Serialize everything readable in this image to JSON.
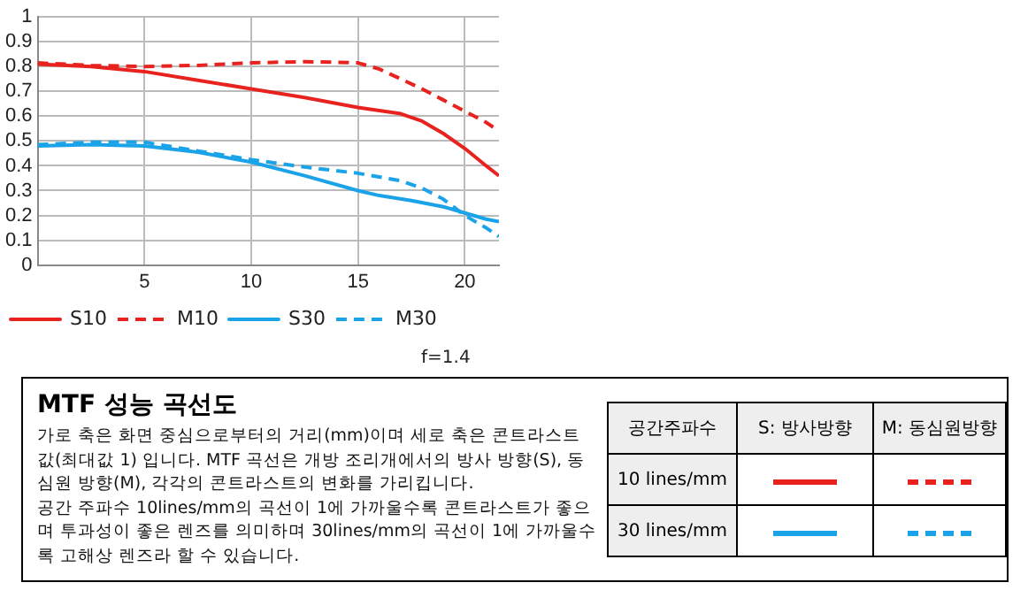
{
  "chart_data": {
    "type": "line",
    "title": "MTF 성능 곡선도",
    "xlim": [
      0,
      21.6
    ],
    "xticks": [
      5,
      10,
      15,
      20
    ],
    "ylim": [
      0,
      1
    ],
    "yticks": [
      0,
      0.1,
      0.2,
      0.3,
      0.4,
      0.5,
      0.6,
      0.7,
      0.8,
      0.9,
      1
    ],
    "grid": true,
    "legend": "bottom",
    "marker": "none",
    "series": [
      {
        "name": "S10",
        "color": "#e8231f",
        "line_style": "solid",
        "x": [
          0,
          2.5,
          5,
          7.5,
          10,
          12.5,
          15,
          17,
          18,
          19,
          20,
          21,
          21.6
        ],
        "values": [
          0.81,
          0.8,
          0.78,
          0.745,
          0.71,
          0.675,
          0.635,
          0.61,
          0.58,
          0.53,
          0.47,
          0.4,
          0.36
        ]
      },
      {
        "name": "M10",
        "color": "#e8231f",
        "line_style": "dashed",
        "x": [
          0,
          2.5,
          5,
          7.5,
          10,
          12.5,
          15,
          16,
          17,
          18,
          19,
          20,
          21,
          21.6
        ],
        "values": [
          0.815,
          0.805,
          0.8,
          0.805,
          0.815,
          0.82,
          0.815,
          0.79,
          0.75,
          0.71,
          0.665,
          0.62,
          0.575,
          0.54
        ]
      },
      {
        "name": "S30",
        "color": "#1aa3e8",
        "line_style": "solid",
        "x": [
          0,
          2.5,
          5,
          7.5,
          10,
          12.5,
          15,
          16,
          17.5,
          19,
          20,
          21,
          21.6
        ],
        "values": [
          0.48,
          0.485,
          0.48,
          0.455,
          0.415,
          0.36,
          0.3,
          0.28,
          0.26,
          0.235,
          0.21,
          0.185,
          0.175
        ]
      },
      {
        "name": "M30",
        "color": "#1aa3e8",
        "line_style": "dashed",
        "x": [
          0,
          2.5,
          5,
          7.5,
          10,
          12.5,
          15,
          17,
          18,
          19,
          20,
          21,
          21.6
        ],
        "values": [
          0.485,
          0.495,
          0.495,
          0.46,
          0.425,
          0.395,
          0.37,
          0.34,
          0.31,
          0.265,
          0.2,
          0.15,
          0.115
        ]
      }
    ],
    "annotations": [
      "f=1.4",
      "가로 축은 화면 중심으로부터의 거리(mm)이며 세로 축은 콘트라스트 값(최대값 1) 입니다. MTF 곡선은 개방 조리개에서의 방사 방향(S), 동심원 방향(M), 각각의 콘트라스트의 변화를 가리킵니다.",
      "공간 주파수 10lines/mm의 곡선이 1에 가까울수록 콘트라스트가 좋으며 투과성이 좋은 렌즈를 의미하며 30lines/mm의 곡선이 1에 가까울수록 고해상 렌즈라 할 수 있습니다.",
      "공간주파수",
      "S: 방사방향",
      "M: 동심원방향",
      "10 lines/mm",
      "30 lines/mm"
    ]
  }
}
